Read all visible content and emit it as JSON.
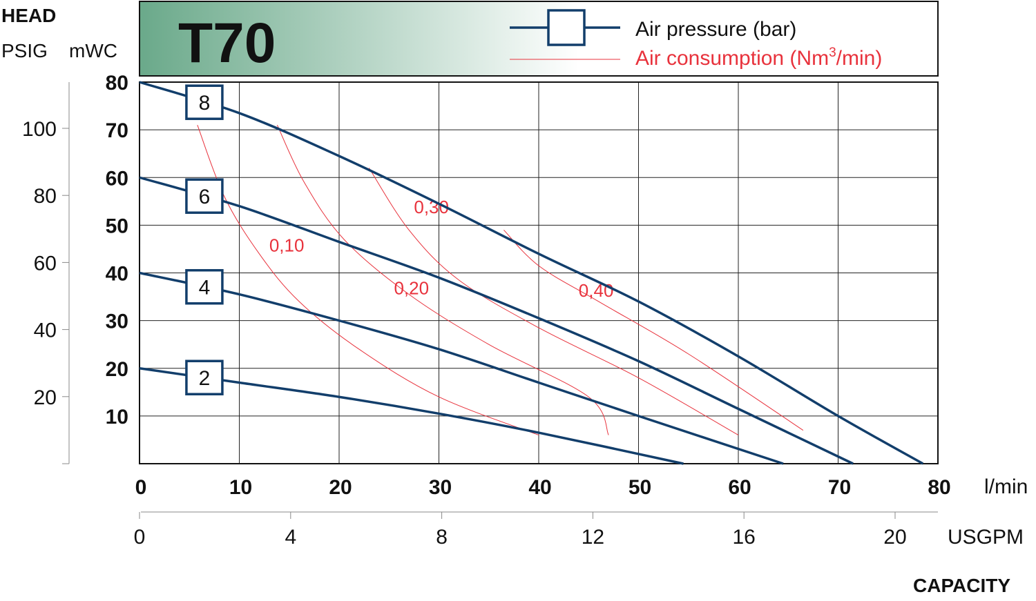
{
  "header": {
    "head_label": "HEAD",
    "psig_label": "PSIG",
    "mwc_label": "mWC",
    "model_title": "T70",
    "banner_gradient": [
      "#6aa98a",
      "#ffffff"
    ]
  },
  "legend": {
    "pressure_label": "Air pressure (bar)",
    "consumption_label_main": "Air consumption (Nm",
    "consumption_label_sup": "3",
    "consumption_label_end": "/min)"
  },
  "axes": {
    "x_unit_lpm": "l/min",
    "x_unit_usgpm": "USGPM",
    "x_title": "CAPACITY",
    "mwc_ticks": [
      "10",
      "20",
      "30",
      "40",
      "50",
      "60",
      "70",
      "80"
    ],
    "psig_ticks": [
      "20",
      "40",
      "60",
      "80",
      "100"
    ],
    "lpm_ticks": [
      "0",
      "10",
      "20",
      "30",
      "40",
      "50",
      "60",
      "70",
      "80"
    ],
    "usgpm_ticks": [
      "0",
      "4",
      "8",
      "12",
      "16",
      "20"
    ]
  },
  "colors": {
    "pressure_line": "#123e6b",
    "consumption_line": "#e8323c",
    "text": "#111111"
  },
  "chart_data": {
    "type": "line",
    "title": "T70",
    "xlabel": "CAPACITY",
    "x_units": [
      "l/min",
      "USGPM"
    ],
    "ylabel": "HEAD",
    "y_units": [
      "PSIG",
      "mWC"
    ],
    "xlim": [
      0,
      80
    ],
    "ylim_mwc": [
      0,
      80
    ],
    "grid": true,
    "legend_position": "top-right",
    "pressure_series": [
      {
        "name": "8",
        "label": "8",
        "points": [
          [
            0,
            80
          ],
          [
            10,
            73.5
          ],
          [
            20,
            64.5
          ],
          [
            30,
            54.5
          ],
          [
            40,
            44
          ],
          [
            50,
            34
          ],
          [
            60,
            22.5
          ],
          [
            70,
            10
          ],
          [
            78.5,
            0
          ]
        ]
      },
      {
        "name": "6",
        "label": "6",
        "points": [
          [
            0,
            60
          ],
          [
            10,
            54
          ],
          [
            20,
            46.5
          ],
          [
            30,
            39
          ],
          [
            40,
            30.5
          ],
          [
            50,
            21.5
          ],
          [
            60,
            11.5
          ],
          [
            71.5,
            0
          ]
        ]
      },
      {
        "name": "4",
        "label": "4",
        "points": [
          [
            0,
            40
          ],
          [
            10,
            35.5
          ],
          [
            20,
            30
          ],
          [
            30,
            24
          ],
          [
            40,
            17
          ],
          [
            50,
            10
          ],
          [
            64.5,
            0
          ]
        ]
      },
      {
        "name": "2",
        "label": "2",
        "points": [
          [
            0,
            20
          ],
          [
            10,
            17
          ],
          [
            20,
            14
          ],
          [
            30,
            10.5
          ],
          [
            40,
            6.5
          ],
          [
            54.5,
            0
          ]
        ]
      }
    ],
    "consumption_series": [
      {
        "name": "0,10",
        "label": "0,10",
        "label_at": [
          13,
          44.5
        ],
        "points": [
          [
            5.8,
            71
          ],
          [
            8.5,
            56
          ],
          [
            12,
            44
          ],
          [
            16,
            34
          ],
          [
            22,
            24
          ],
          [
            30,
            14
          ],
          [
            40,
            6
          ]
        ]
      },
      {
        "name": "0,20",
        "label": "0,20",
        "label_at": [
          25.5,
          35.5
        ],
        "points": [
          [
            13.8,
            71
          ],
          [
            16.5,
            59
          ],
          [
            20.5,
            47
          ],
          [
            27,
            35.5
          ],
          [
            35,
            25
          ],
          [
            45,
            14
          ],
          [
            47,
            6
          ]
        ]
      },
      {
        "name": "0,30",
        "label": "0,30",
        "label_at": [
          27.5,
          52.5
        ],
        "points": [
          [
            23,
            62
          ],
          [
            27,
            49
          ],
          [
            32,
            38.5
          ],
          [
            40,
            28.5
          ],
          [
            50,
            18
          ],
          [
            60,
            6
          ]
        ]
      },
      {
        "name": "0,40",
        "label": "0,40",
        "label_at": [
          44,
          35
        ],
        "points": [
          [
            36.5,
            49
          ],
          [
            40,
            41.5
          ],
          [
            46,
            34
          ],
          [
            55,
            23
          ],
          [
            66.5,
            7
          ]
        ]
      }
    ]
  }
}
